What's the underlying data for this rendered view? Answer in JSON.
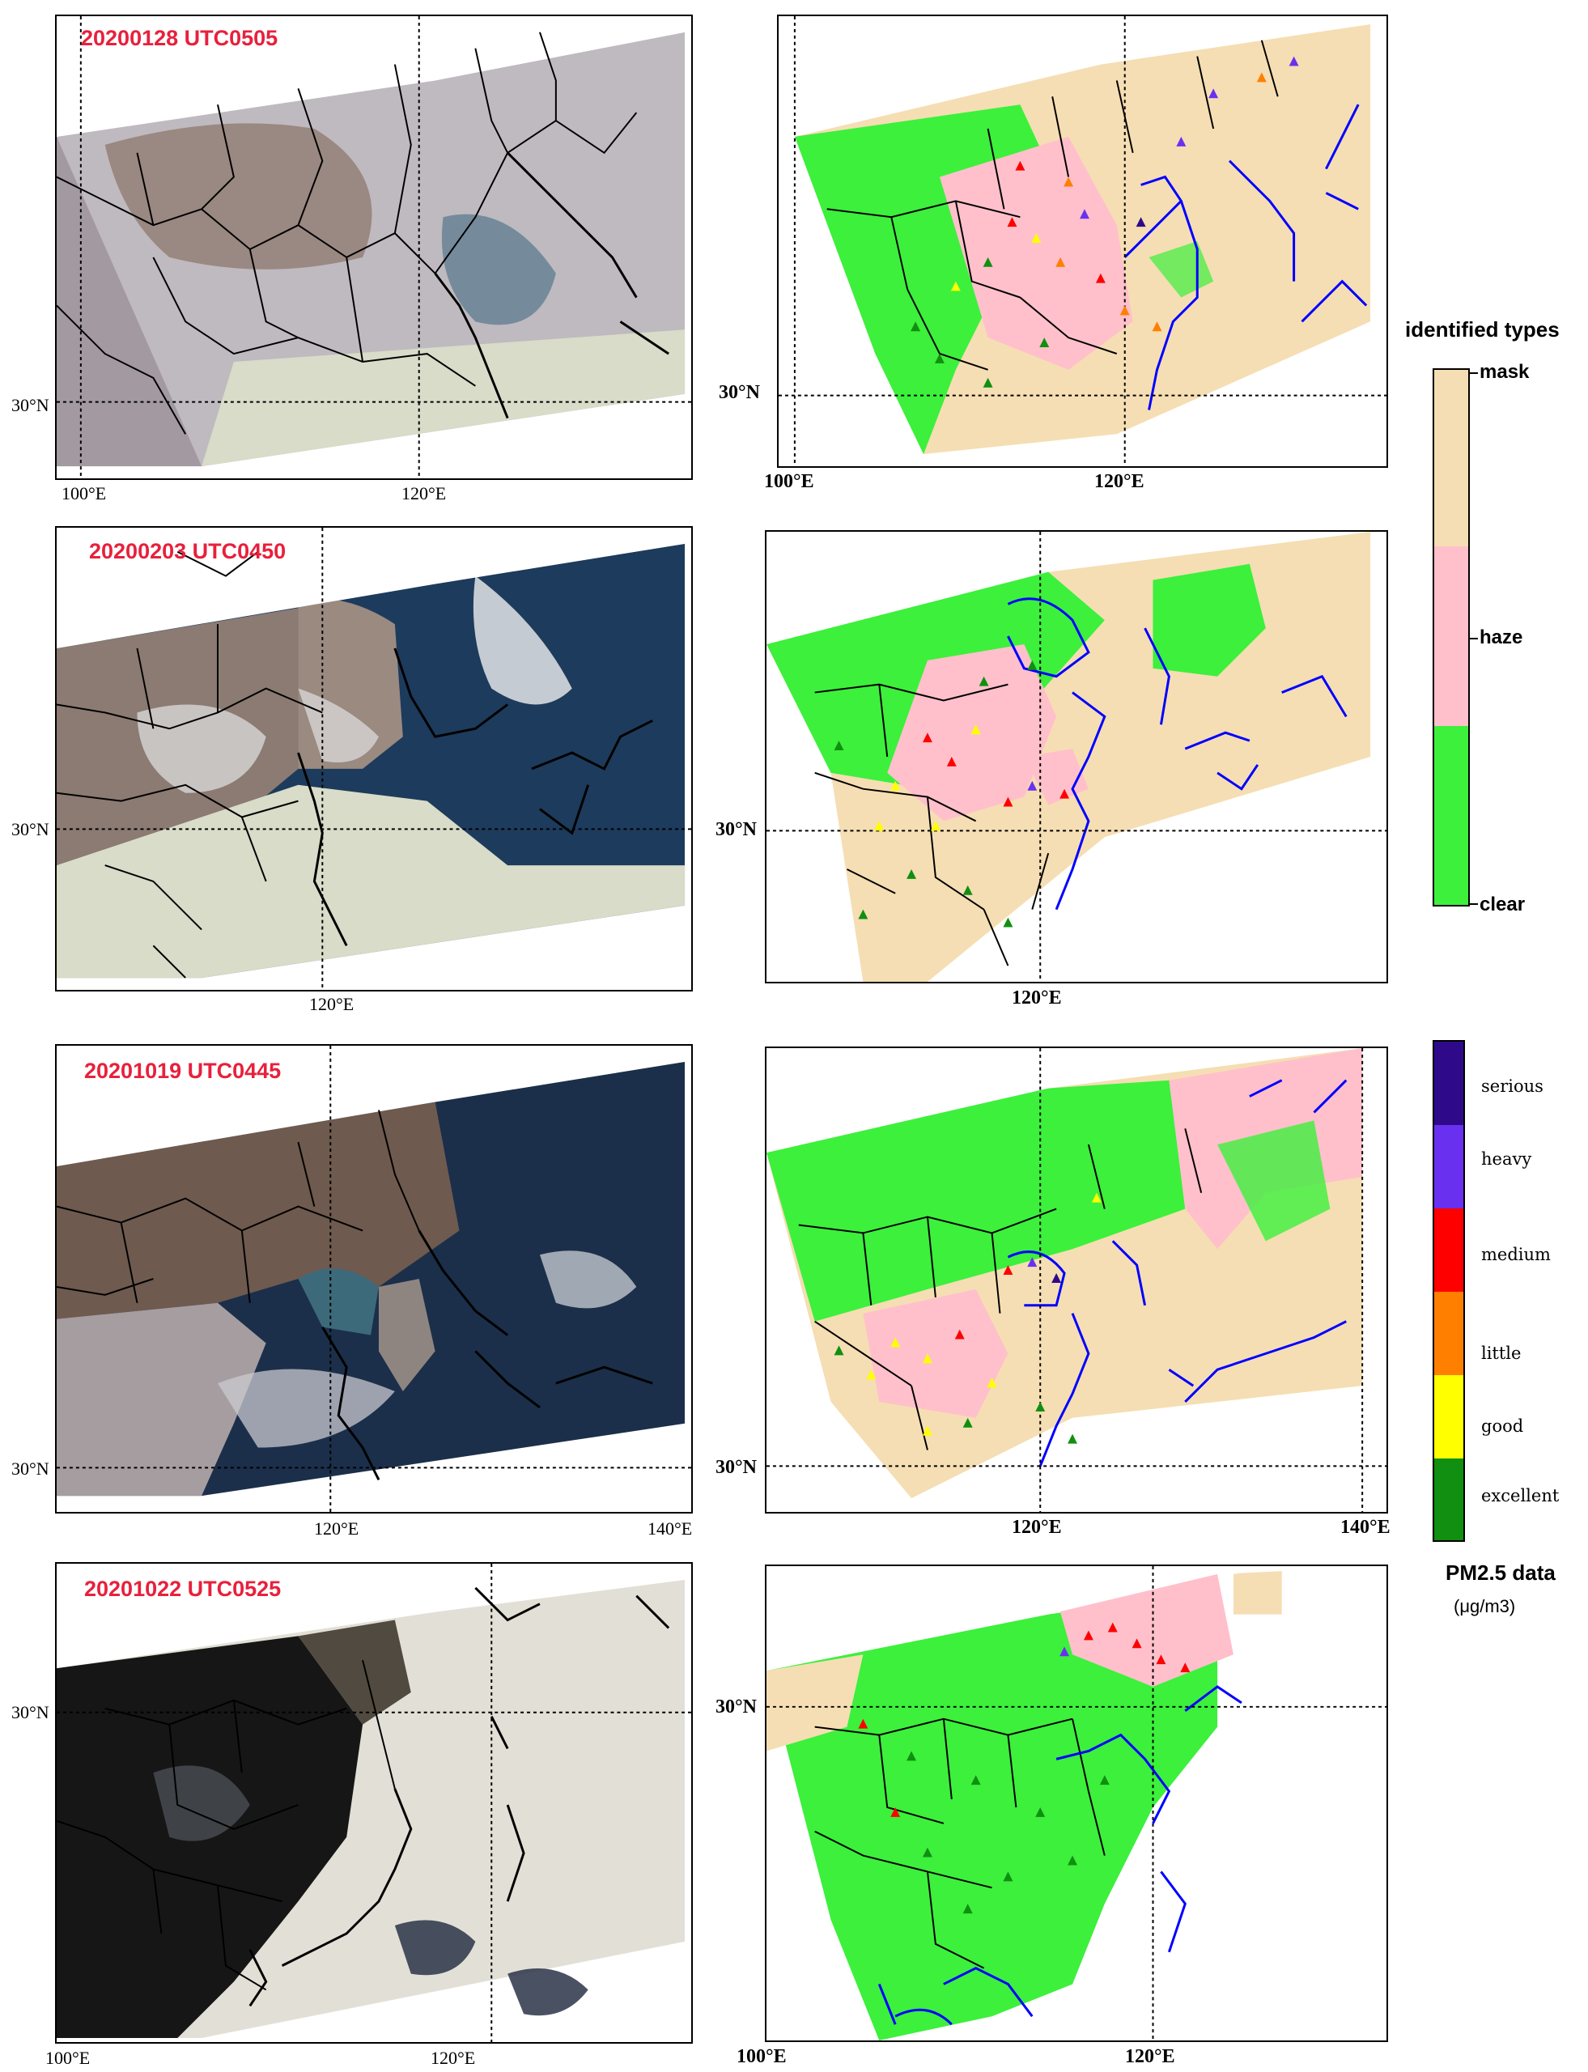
{
  "panels": [
    {
      "title": "20200128 UTC0505",
      "lat_label": "30°N",
      "lon_labels": [
        "100°E",
        "120°E"
      ]
    },
    {
      "title": "20200203 UTC0450",
      "lat_label": "30°N",
      "lon_labels": [
        "120°E"
      ]
    },
    {
      "title": "20201019 UTC0445",
      "lat_label": "30°N",
      "lon_labels": [
        "120°E",
        "140°E"
      ]
    },
    {
      "title": "20201022 UTC0525",
      "lat_label": "30°N",
      "lon_labels": [
        "100°E",
        "120°E"
      ]
    }
  ],
  "identified_panels": [
    {
      "lat_label": "30°N",
      "lon_labels": [
        "100°E",
        "120°E"
      ]
    },
    {
      "lat_label": "30°N",
      "lon_labels": [
        "120°E"
      ]
    },
    {
      "lat_label": "30°N",
      "lon_labels": [
        "120°E",
        "140°E"
      ]
    },
    {
      "lat_label": "30°N",
      "lon_labels": [
        "100°E",
        "120°E"
      ]
    }
  ],
  "legend_types": {
    "title": "identified types",
    "labels": [
      "mask",
      "haze",
      "clear"
    ],
    "colors": {
      "mask": "#f5deb3",
      "haze": "#ffc0cb",
      "clear": "#3cf03c"
    }
  },
  "legend_pm": {
    "title": "PM2.5 data",
    "unit": "(μg/m3)",
    "labels": [
      "serious",
      "heavy",
      "medium",
      "little",
      "good",
      "excellent"
    ],
    "colors": {
      "serious": "#2e0a8a",
      "heavy": "#6a30f0",
      "medium": "#ff0000",
      "little": "#ff7f00",
      "good": "#ffff00",
      "excellent": "#108f10"
    }
  },
  "map_colors": {
    "border": "#000000",
    "coastline": "#0000ff",
    "grid": "#000000",
    "cloud": "#e8e6e2",
    "land": "#8a7a70",
    "sea": "#1e3a5a"
  }
}
